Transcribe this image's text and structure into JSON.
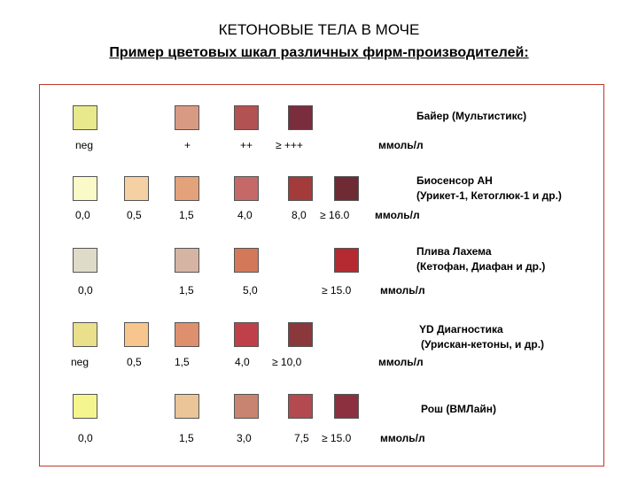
{
  "title": "КЕТОНОВЫЕ ТЕЛА В МОЧЕ",
  "subtitle": "Пример цветовых шкал различных фирм-производителей:",
  "scales": [
    {
      "manufacturer": [
        "Байер (Мультистикс)"
      ],
      "unit": "ммоль/л",
      "swatches": [
        "#e8e88c",
        "#d99a84",
        "#b25252",
        "#7a2d3d"
      ],
      "labels": [
        "neg",
        "+",
        "++",
        "≥ +++"
      ]
    },
    {
      "manufacturer": [
        "Биосенсор АН",
        "(Урикет-1, Кетоглюк-1 и др.)"
      ],
      "unit": "ммоль/л",
      "swatches": [
        "#fafac8",
        "#f5d0a2",
        "#e3a27a",
        "#c56868",
        "#a43b3b",
        "#6e2b34"
      ],
      "labels": [
        "0,0",
        "0,5",
        "1,5",
        "4,0",
        "8,0",
        "≥ 16.0"
      ]
    },
    {
      "manufacturer": [
        "Плива Лахема",
        "(Кетофан, Диафан и др.)"
      ],
      "unit": "ммоль/л",
      "swatches": [
        "#dedcc8",
        "#d6b4a4",
        "#d4785a",
        "#b52a30"
      ],
      "labels": [
        "0,0",
        "1,5",
        "5,0",
        "≥ 15.0"
      ]
    },
    {
      "manufacturer": [
        "YD Диагностика",
        "(Урискан-кетоны, и др.)"
      ],
      "unit": "ммоль/л",
      "swatches": [
        "#eae08c",
        "#f7c68e",
        "#de906e",
        "#c0404a",
        "#8a383c"
      ],
      "labels": [
        "neg",
        "0,5",
        "1,5",
        "4,0",
        "≥ 10,0"
      ]
    },
    {
      "manufacturer": [
        "Рош (ВМЛайн)"
      ],
      "unit": "ммоль/л",
      "swatches": [
        "#f5f590",
        "#ebc598",
        "#c88470",
        "#b24a50",
        "#8c3040"
      ],
      "labels": [
        "0,0",
        "1,5",
        "3,0",
        "7,5",
        "≥ 15.0"
      ]
    }
  ]
}
